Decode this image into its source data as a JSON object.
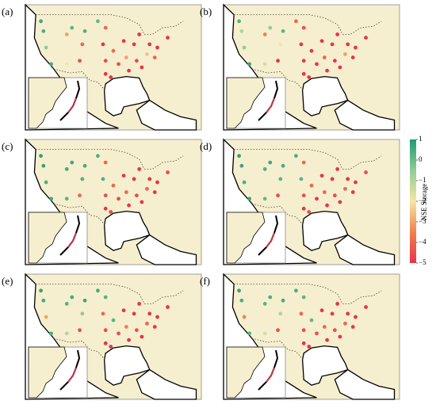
{
  "chart_data": {
    "type": "map",
    "clabel": "NSE Storage",
    "clim": [
      -5,
      1
    ],
    "cticks": [
      1,
      0,
      {
        "value": -1,
        "label": "−1"
      },
      {
        "value": -2,
        "label": "−2"
      },
      {
        "value": -3,
        "label": "−3"
      },
      {
        "value": -4,
        "label": "−4"
      },
      {
        "value": -5,
        "label": "−5"
      }
    ],
    "stations": {
      "lon": [
        -122,
        -121,
        -120,
        -118,
        -112,
        -110,
        -106,
        -105,
        -112,
        -107,
        -100,
        -97,
        -98,
        -97,
        -97,
        -94,
        -92,
        -90,
        -89,
        -86,
        -85,
        -83,
        -81,
        -80,
        -77,
        -78,
        -84,
        -95,
        -88,
        -73
      ],
      "lat": [
        47,
        44,
        39,
        34,
        43,
        45,
        40,
        44,
        34,
        35,
        47,
        45,
        40,
        35,
        31,
        38,
        34,
        41,
        36,
        40,
        35,
        33,
        37,
        40,
        39,
        36,
        43,
        30,
        32,
        42
      ]
    },
    "panels": [
      {
        "label": "(a)",
        "values": [
          0.6,
          0.4,
          -0.5,
          0.5,
          -3,
          0.2,
          -4,
          0.3,
          -2,
          -4.5,
          0.1,
          -4,
          -5,
          -4.5,
          -5,
          -4,
          -4.5,
          -5,
          -3,
          -5,
          -4.5,
          -5,
          -2.5,
          -5,
          -5,
          -4,
          -5,
          -5,
          -5,
          -5
        ]
      },
      {
        "label": "(b)",
        "values": [
          0.3,
          -1,
          -0.5,
          0.6,
          -3.5,
          -0.5,
          -2,
          0.2,
          -1.5,
          -5,
          -4,
          -4.5,
          -5,
          -5,
          -5,
          -5,
          -5,
          -5,
          -4,
          -5,
          -5,
          -5,
          -3,
          -5,
          -5,
          -5,
          -5,
          -5,
          -5,
          -5
        ]
      },
      {
        "label": "(c)",
        "values": [
          0.8,
          0.7,
          0.4,
          0.6,
          0.5,
          0.6,
          0.3,
          0.5,
          0.2,
          -4,
          0.4,
          -4,
          0.3,
          -4.5,
          -5,
          -4,
          -4.5,
          -5,
          -4,
          -5,
          -4.5,
          -5,
          -4,
          -5,
          -5,
          -5,
          -5,
          -4.5,
          -5,
          -4.5
        ]
      },
      {
        "label": "(d)",
        "values": [
          0.8,
          0.6,
          0.4,
          0.6,
          0.3,
          0.6,
          0.2,
          0.5,
          0.1,
          -4.5,
          0.4,
          -4,
          0.2,
          -4.5,
          -5,
          -4,
          -5,
          -5,
          -4,
          -5,
          -4.5,
          -5,
          -4,
          -5,
          -5,
          -5,
          -5,
          -4.5,
          -5,
          -4.5
        ]
      },
      {
        "label": "(e)",
        "values": [
          0.7,
          0.5,
          -3,
          0.4,
          0.3,
          0.5,
          -0.5,
          0.6,
          -1,
          -4.5,
          0.5,
          0.3,
          -4,
          -4.5,
          -5,
          0.2,
          -4.5,
          -5,
          -3.5,
          -5,
          -4.5,
          -5,
          -4,
          -5,
          -5,
          -5,
          -5,
          -5,
          -5,
          -5
        ]
      },
      {
        "label": "(f)",
        "values": [
          0.7,
          0.4,
          -3.5,
          0.3,
          0.2,
          0.4,
          -1,
          0.5,
          -1.5,
          -4.5,
          0.4,
          0.2,
          -4,
          -4.5,
          -5,
          0.1,
          -4.5,
          -5,
          -4,
          -5,
          -4.5,
          -5,
          -4,
          -5,
          -5,
          -5,
          -5,
          -5,
          -5,
          -5
        ]
      }
    ]
  }
}
